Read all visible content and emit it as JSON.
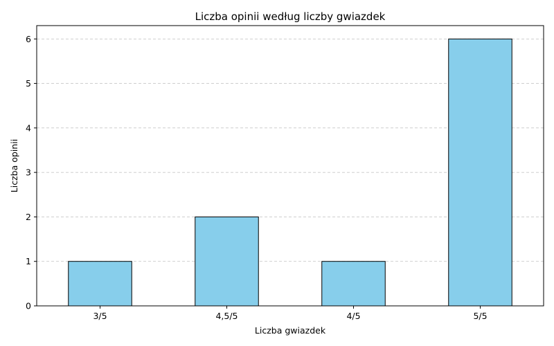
{
  "chart_data": {
    "type": "bar",
    "title": "Liczba opinii według liczby gwiazdek",
    "xlabel": "Liczba gwiazdek",
    "ylabel": "Liczba opinii",
    "categories": [
      "3/5",
      "4,5/5",
      "4/5",
      "5/5"
    ],
    "values": [
      1,
      2,
      1,
      6
    ],
    "ylim": [
      0,
      6.3
    ],
    "yticks": [
      0,
      1,
      2,
      3,
      4,
      5,
      6
    ],
    "grid": "y",
    "bar_color": "#87ceeb",
    "edge_color": "#000000",
    "grid_color": "#c8c8c8"
  }
}
